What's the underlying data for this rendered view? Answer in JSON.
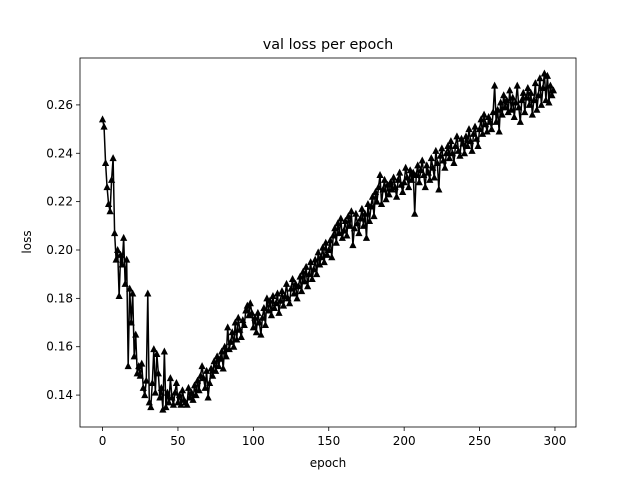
{
  "chart_data": {
    "type": "line",
    "title": "val loss per epoch",
    "x_label": "epoch",
    "y_label": "loss",
    "x": [
      0,
      1,
      2,
      3,
      4,
      5,
      6,
      7,
      8,
      9,
      10,
      11,
      12,
      13,
      14,
      15,
      16,
      17,
      18,
      19,
      20,
      21,
      22,
      23,
      24,
      25,
      26,
      27,
      28,
      29,
      30,
      31,
      32,
      33,
      34,
      35,
      36,
      37,
      38,
      39,
      40,
      41,
      42,
      43,
      44,
      45,
      46,
      47,
      48,
      49,
      50,
      51,
      52,
      53,
      54,
      55,
      56,
      57,
      58,
      59,
      60,
      61,
      62,
      63,
      64,
      65,
      66,
      67,
      68,
      69,
      70,
      71,
      72,
      73,
      74,
      75,
      76,
      77,
      78,
      79,
      80,
      81,
      82,
      83,
      84,
      85,
      86,
      87,
      88,
      89,
      90,
      91,
      92,
      93,
      94,
      95,
      96,
      97,
      98,
      99,
      100,
      101,
      102,
      103,
      104,
      105,
      106,
      107,
      108,
      109,
      110,
      111,
      112,
      113,
      114,
      115,
      116,
      117,
      118,
      119,
      120,
      121,
      122,
      123,
      124,
      125,
      126,
      127,
      128,
      129,
      130,
      131,
      132,
      133,
      134,
      135,
      136,
      137,
      138,
      139,
      140,
      141,
      142,
      143,
      144,
      145,
      146,
      147,
      148,
      149,
      150,
      151,
      152,
      153,
      154,
      155,
      156,
      157,
      158,
      159,
      160,
      161,
      162,
      163,
      164,
      165,
      166,
      167,
      168,
      169,
      170,
      171,
      172,
      173,
      174,
      175,
      176,
      177,
      178,
      179,
      180,
      181,
      182,
      183,
      184,
      185,
      186,
      187,
      188,
      189,
      190,
      191,
      192,
      193,
      194,
      195,
      196,
      197,
      198,
      199,
      200,
      201,
      202,
      203,
      204,
      205,
      206,
      207,
      208,
      209,
      210,
      211,
      212,
      213,
      214,
      215,
      216,
      217,
      218,
      219,
      220,
      221,
      222,
      223,
      224,
      225,
      226,
      227,
      228,
      229,
      230,
      231,
      232,
      233,
      234,
      235,
      236,
      237,
      238,
      239,
      240,
      241,
      242,
      243,
      244,
      245,
      246,
      247,
      248,
      249,
      250,
      251,
      252,
      253,
      254,
      255,
      256,
      257,
      258,
      259,
      260,
      261,
      262,
      263,
      264,
      265,
      266,
      267,
      268,
      269,
      270,
      271,
      272,
      273,
      274,
      275,
      276,
      277,
      278,
      279,
      280,
      281,
      282,
      283,
      284,
      285,
      286,
      287,
      288,
      289,
      290,
      291,
      292,
      293,
      294,
      295,
      296,
      297,
      298,
      299
    ],
    "series": [
      {
        "name": "val loss",
        "color": "#000000",
        "marker": "triangle-up",
        "values": [
          0.254,
          0.251,
          0.236,
          0.226,
          0.219,
          0.216,
          0.229,
          0.238,
          0.207,
          0.196,
          0.2,
          0.181,
          0.198,
          0.194,
          0.205,
          0.186,
          0.196,
          0.152,
          0.184,
          0.17,
          0.182,
          0.156,
          0.165,
          0.149,
          0.152,
          0.148,
          0.153,
          0.143,
          0.14,
          0.146,
          0.182,
          0.137,
          0.135,
          0.145,
          0.159,
          0.141,
          0.157,
          0.149,
          0.139,
          0.143,
          0.134,
          0.158,
          0.135,
          0.141,
          0.137,
          0.147,
          0.139,
          0.136,
          0.141,
          0.145,
          0.137,
          0.14,
          0.136,
          0.142,
          0.138,
          0.137,
          0.136,
          0.143,
          0.139,
          0.141,
          0.138,
          0.144,
          0.14,
          0.146,
          0.142,
          0.148,
          0.152,
          0.147,
          0.143,
          0.15,
          0.139,
          0.145,
          0.151,
          0.148,
          0.154,
          0.15,
          0.156,
          0.152,
          0.155,
          0.158,
          0.151,
          0.16,
          0.156,
          0.168,
          0.159,
          0.162,
          0.166,
          0.16,
          0.17,
          0.163,
          0.172,
          0.167,
          0.164,
          0.171,
          0.169,
          0.175,
          0.177,
          0.173,
          0.178,
          0.174,
          0.168,
          0.172,
          0.166,
          0.174,
          0.17,
          0.165,
          0.172,
          0.176,
          0.169,
          0.18,
          0.175,
          0.179,
          0.173,
          0.181,
          0.176,
          0.178,
          0.182,
          0.174,
          0.179,
          0.183,
          0.177,
          0.181,
          0.186,
          0.18,
          0.178,
          0.184,
          0.188,
          0.182,
          0.186,
          0.18,
          0.185,
          0.189,
          0.183,
          0.191,
          0.187,
          0.193,
          0.185,
          0.19,
          0.195,
          0.188,
          0.192,
          0.196,
          0.19,
          0.199,
          0.194,
          0.197,
          0.201,
          0.195,
          0.203,
          0.198,
          0.2,
          0.204,
          0.197,
          0.206,
          0.209,
          0.203,
          0.211,
          0.207,
          0.213,
          0.205,
          0.208,
          0.212,
          0.206,
          0.214,
          0.21,
          0.216,
          0.202,
          0.209,
          0.215,
          0.211,
          0.207,
          0.213,
          0.217,
          0.21,
          0.215,
          0.205,
          0.219,
          0.212,
          0.218,
          0.222,
          0.214,
          0.224,
          0.22,
          0.226,
          0.231,
          0.219,
          0.225,
          0.229,
          0.221,
          0.227,
          0.223,
          0.228,
          0.225,
          0.23,
          0.226,
          0.222,
          0.229,
          0.232,
          0.227,
          0.224,
          0.228,
          0.234,
          0.23,
          0.226,
          0.233,
          0.229,
          0.232,
          0.215,
          0.231,
          0.235,
          0.228,
          0.233,
          0.237,
          0.231,
          0.226,
          0.235,
          0.232,
          0.229,
          0.238,
          0.234,
          0.23,
          0.241,
          0.236,
          0.225,
          0.239,
          0.242,
          0.237,
          0.234,
          0.24,
          0.243,
          0.238,
          0.245,
          0.24,
          0.236,
          0.243,
          0.247,
          0.241,
          0.239,
          0.246,
          0.244,
          0.24,
          0.247,
          0.243,
          0.25,
          0.245,
          0.241,
          0.248,
          0.251,
          0.246,
          0.243,
          0.25,
          0.254,
          0.248,
          0.256,
          0.252,
          0.249,
          0.255,
          0.253,
          0.25,
          0.257,
          0.268,
          0.253,
          0.258,
          0.249,
          0.261,
          0.256,
          0.264,
          0.259,
          0.262,
          0.257,
          0.266,
          0.258,
          0.263,
          0.255,
          0.261,
          0.268,
          0.259,
          0.253,
          0.262,
          0.265,
          0.257,
          0.263,
          0.267,
          0.26,
          0.265,
          0.256,
          0.262,
          0.269,
          0.258,
          0.264,
          0.271,
          0.26,
          0.267,
          0.273,
          0.262,
          0.272,
          0.261,
          0.268,
          0.264,
          0.266
        ]
      }
    ],
    "xlim": [
      -14.95,
      313.95
    ],
    "xticks": [
      0,
      50,
      100,
      150,
      200,
      250,
      300
    ],
    "ylim": [
      0.1268,
      0.2794
    ],
    "yticks": [
      0.14,
      0.16,
      0.18,
      {
        "value": 0.2,
        "label": "0.20"
      },
      0.22,
      0.24,
      0.26
    ],
    "grid": false
  }
}
